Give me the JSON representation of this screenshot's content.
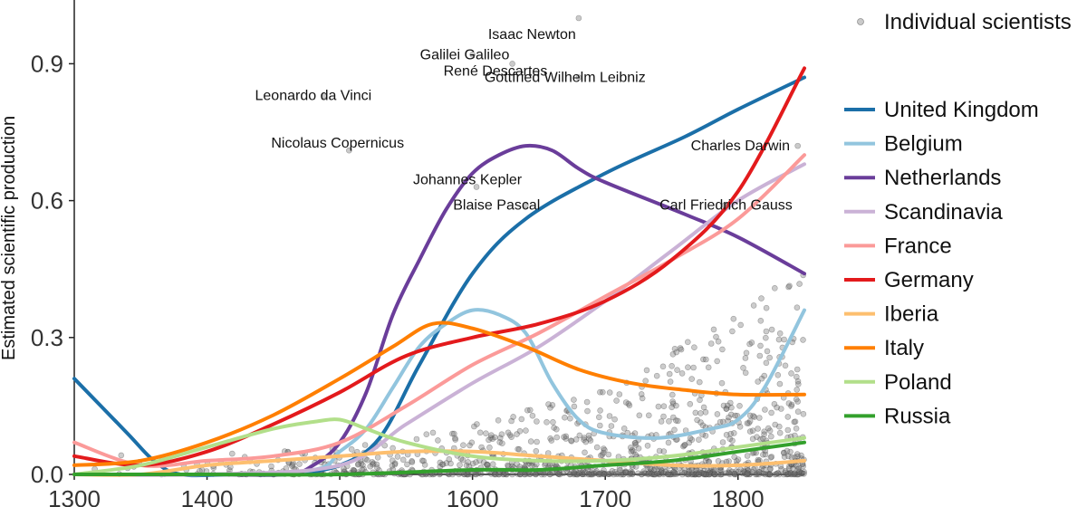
{
  "chart_data": {
    "type": "line",
    "title": "",
    "xlabel": "",
    "ylabel": "Estimated scientific production",
    "xlim": [
      1300,
      1850
    ],
    "ylim": [
      0,
      1.0
    ],
    "x_ticks": [
      1300,
      1400,
      1500,
      1600,
      1700,
      1800
    ],
    "x_tick_labels": [
      "1300",
      "1400",
      "1500",
      "1600",
      "1700",
      "1800"
    ],
    "y_ticks": [
      0.0,
      0.3,
      0.6,
      0.9
    ],
    "y_tick_labels": [
      "0.0",
      "0.3",
      "0.6",
      "0.9"
    ],
    "legend_position": "right",
    "scatter_legend_label": "Individual scientists",
    "scatter_color": "#999999",
    "series": [
      {
        "name": "United Kingdom",
        "color": "#1b6fa8",
        "x": [
          1300,
          1340,
          1360,
          1380,
          1420,
          1460,
          1500,
          1530,
          1560,
          1600,
          1640,
          1700,
          1760,
          1800,
          1850
        ],
        "values": [
          0.21,
          0.09,
          0.03,
          0.0,
          0.0,
          0.0,
          0.02,
          0.08,
          0.24,
          0.44,
          0.56,
          0.66,
          0.74,
          0.8,
          0.87
        ]
      },
      {
        "name": "Belgium",
        "color": "#92c5de",
        "x": [
          1300,
          1400,
          1480,
          1500,
          1520,
          1540,
          1560,
          1580,
          1600,
          1620,
          1640,
          1660,
          1680,
          1700,
          1740,
          1780,
          1800,
          1820,
          1850
        ],
        "values": [
          0.0,
          0.0,
          0.01,
          0.05,
          0.1,
          0.19,
          0.28,
          0.33,
          0.36,
          0.35,
          0.31,
          0.2,
          0.12,
          0.09,
          0.08,
          0.1,
          0.12,
          0.19,
          0.36
        ]
      },
      {
        "name": "Netherlands",
        "color": "#6a3d9a",
        "x": [
          1300,
          1400,
          1460,
          1480,
          1500,
          1520,
          1540,
          1560,
          1580,
          1600,
          1620,
          1640,
          1660,
          1680,
          1700,
          1760,
          1800,
          1850
        ],
        "values": [
          0.0,
          0.0,
          0.0,
          0.02,
          0.07,
          0.18,
          0.35,
          0.47,
          0.58,
          0.66,
          0.7,
          0.72,
          0.71,
          0.67,
          0.64,
          0.57,
          0.52,
          0.44
        ]
      },
      {
        "name": "Scandinavia",
        "color": "#cab2d6",
        "x": [
          1300,
          1400,
          1500,
          1550,
          1600,
          1650,
          1700,
          1750,
          1800,
          1850
        ],
        "values": [
          0.0,
          0.0,
          0.02,
          0.11,
          0.2,
          0.28,
          0.38,
          0.49,
          0.6,
          0.68
        ]
      },
      {
        "name": "France",
        "color": "#fb9a99",
        "x": [
          1300,
          1350,
          1400,
          1450,
          1500,
          1550,
          1600,
          1650,
          1700,
          1750,
          1800,
          1850
        ],
        "values": [
          0.07,
          0.02,
          0.03,
          0.04,
          0.07,
          0.15,
          0.24,
          0.31,
          0.39,
          0.47,
          0.56,
          0.7
        ]
      },
      {
        "name": "Germany",
        "color": "#e31a1c",
        "x": [
          1300,
          1350,
          1400,
          1450,
          1500,
          1550,
          1600,
          1650,
          1700,
          1750,
          1800,
          1850
        ],
        "values": [
          0.04,
          0.02,
          0.05,
          0.11,
          0.18,
          0.26,
          0.3,
          0.33,
          0.38,
          0.47,
          0.62,
          0.89
        ]
      },
      {
        "name": "Iberia",
        "color": "#fdbf6f",
        "x": [
          1300,
          1350,
          1400,
          1450,
          1500,
          1550,
          1600,
          1650,
          1700,
          1750,
          1800,
          1850
        ],
        "values": [
          0.0,
          0.0,
          0.02,
          0.03,
          0.04,
          0.05,
          0.05,
          0.04,
          0.03,
          0.02,
          0.02,
          0.03
        ]
      },
      {
        "name": "Italy",
        "color": "#ff7f00",
        "x": [
          1300,
          1350,
          1400,
          1450,
          1500,
          1540,
          1570,
          1600,
          1640,
          1680,
          1720,
          1760,
          1800,
          1850
        ],
        "values": [
          0.02,
          0.03,
          0.07,
          0.13,
          0.21,
          0.28,
          0.33,
          0.32,
          0.28,
          0.23,
          0.2,
          0.185,
          0.175,
          0.175
        ]
      },
      {
        "name": "Poland",
        "color": "#b2df8a",
        "x": [
          1300,
          1350,
          1400,
          1450,
          1480,
          1500,
          1520,
          1550,
          1600,
          1650,
          1700,
          1750,
          1800,
          1850
        ],
        "values": [
          0.0,
          0.02,
          0.06,
          0.1,
          0.115,
          0.12,
          0.1,
          0.07,
          0.04,
          0.03,
          0.03,
          0.04,
          0.06,
          0.08
        ]
      },
      {
        "name": "Russia",
        "color": "#33a02c",
        "x": [
          1300,
          1400,
          1500,
          1600,
          1650,
          1700,
          1750,
          1800,
          1850
        ],
        "values": [
          0.0,
          0.0,
          0.0,
          0.01,
          0.01,
          0.02,
          0.03,
          0.05,
          0.07
        ]
      }
    ],
    "annotations": [
      {
        "label": "Isaac Newton",
        "x": 1680,
        "y": 1.0
      },
      {
        "label": "Galilei Galileo",
        "x": 1600,
        "y": 0.92
      },
      {
        "label": "René Descartes",
        "x": 1630,
        "y": 0.9
      },
      {
        "label": "Gottfried Wilhelm Leibniz",
        "x": 1680,
        "y": 0.87
      },
      {
        "label": "Leonardo da Vinci",
        "x": 1488,
        "y": 0.83
      },
      {
        "label": "Nicolaus Copernicus",
        "x": 1507,
        "y": 0.71
      },
      {
        "label": "Johannes Kepler",
        "x": 1603,
        "y": 0.63
      },
      {
        "label": "Blaise Pascal",
        "x": 1640,
        "y": 0.59
      },
      {
        "label": "Charles Darwin",
        "x": 1845,
        "y": 0.72
      },
      {
        "label": "Carl Friedrich Gauss",
        "x": 1790,
        "y": 0.59
      }
    ]
  }
}
